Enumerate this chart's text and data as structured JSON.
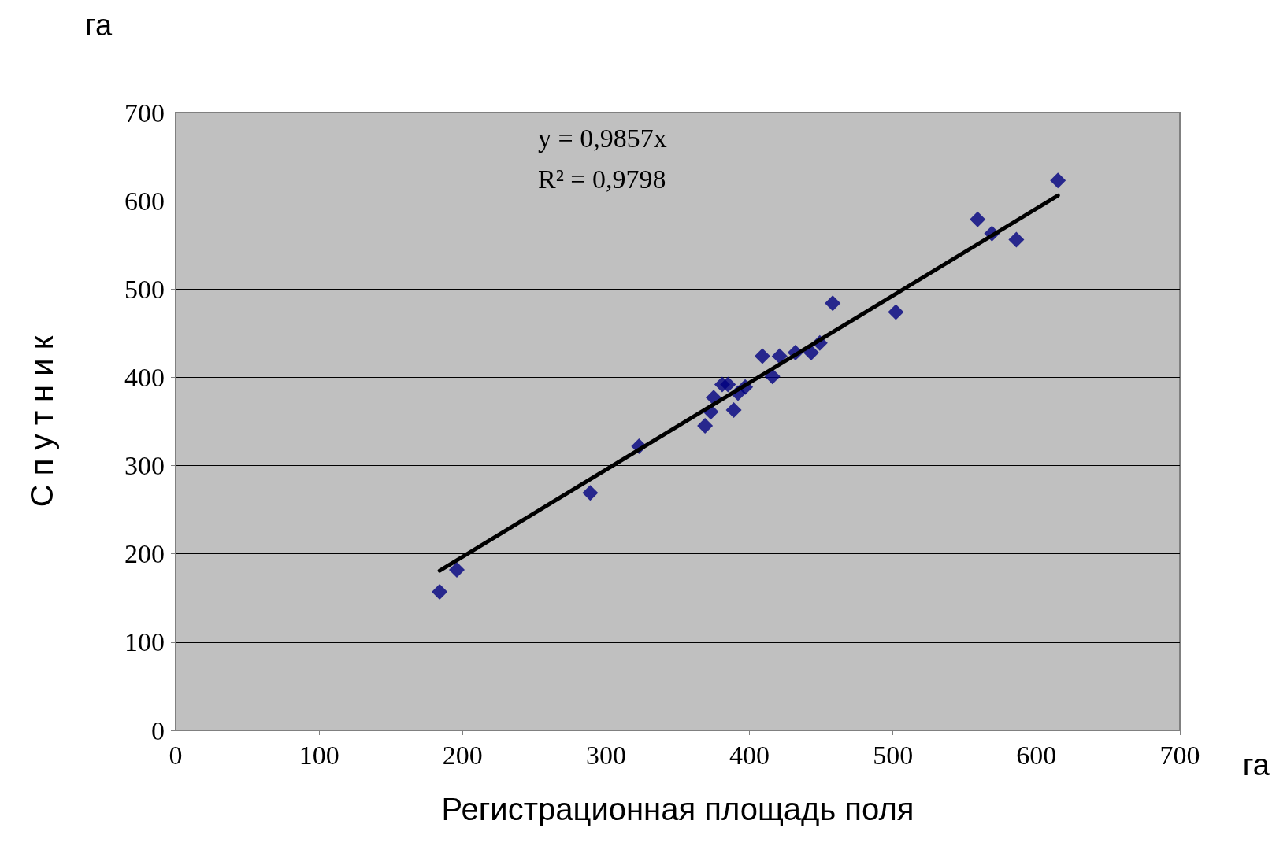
{
  "chart_data": {
    "type": "scatter",
    "xlabel": "Регистрационная площадь поля",
    "ylabel": "С п у т н и к",
    "annotations": [
      "y = 0,9857x",
      "R² = 0,9798",
      "га",
      "га"
    ],
    "xlim": [
      0,
      700
    ],
    "xticks": [
      0,
      100,
      200,
      300,
      400,
      500,
      600,
      700
    ],
    "ylim": [
      0,
      700
    ],
    "yticks": [
      0,
      100,
      200,
      300,
      400,
      500,
      600,
      700
    ],
    "grid": "y",
    "series": [
      {
        "color": "#000080",
        "marker": "diamond",
        "x": [
          184,
          196,
          289,
          323,
          369,
          373,
          375,
          381,
          385,
          389,
          392,
          397,
          409,
          416,
          421,
          432,
          443,
          449,
          458,
          502,
          559,
          569,
          586,
          615
        ],
        "values": [
          157,
          182,
          269,
          322,
          345,
          361,
          377,
          392,
          392,
          363,
          382,
          389,
          424,
          401,
          424,
          428,
          428,
          439,
          484,
          474,
          579,
          563,
          556,
          623
        ]
      },
      {
        "type": "line",
        "color": "#000000",
        "marker": "none",
        "line_style": "solid",
        "x": [
          184,
          615
        ],
        "values": [
          181,
          606
        ]
      }
    ]
  }
}
